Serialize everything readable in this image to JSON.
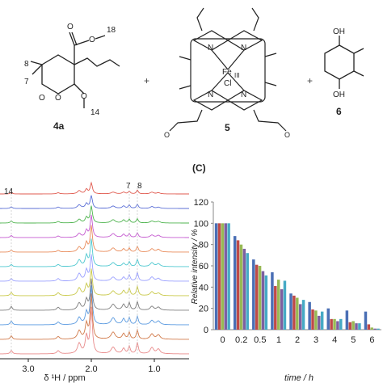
{
  "structures": {
    "compound_4a": {
      "name": "4a",
      "atom_labels": [
        "8",
        "7",
        "18",
        "14"
      ],
      "ring_oxygens": [
        "O",
        "O"
      ]
    },
    "compound_5": {
      "name": "5",
      "metal": "Fe",
      "oxidation_state": "III",
      "axial_ligand": "Cl",
      "pyrrole_nitrogens": [
        "N",
        "N",
        "N",
        "N"
      ]
    },
    "compound_6": {
      "name": "6",
      "hydroxyls": [
        "OH",
        "OH"
      ]
    },
    "plus_signs": [
      "+",
      "+"
    ]
  },
  "nmr_panel": {
    "peak_labels": [
      "14",
      "7",
      "8"
    ],
    "x_ticks": [
      "3.0",
      "2.0",
      "1.0"
    ],
    "x_axis_label": "δ ¹H / ppm",
    "spectrum_colors": [
      "#e05a4f",
      "#5b6fd6",
      "#4fb44f",
      "#c55bd0",
      "#e98b5a",
      "#4fc8d0",
      "#9aa0ff",
      "#c9c94a",
      "#7e7e7e",
      "#5a9ae0",
      "#d17a4a",
      "#e88a8a"
    ]
  },
  "panel_c_label": "(C)",
  "chart_data": {
    "type": "bar",
    "categories": [
      "0",
      "0.2",
      "0.5",
      "1",
      "2",
      "3",
      "4",
      "5",
      "6"
    ],
    "series": [
      {
        "color": "#4a6fb5",
        "values": [
          100,
          88,
          66,
          54,
          34,
          26,
          20,
          18,
          17
        ]
      },
      {
        "color": "#be4a48",
        "values": [
          100,
          84,
          61,
          41,
          32,
          19,
          10,
          7,
          5
        ]
      },
      {
        "color": "#98b954",
        "values": [
          100,
          80,
          60,
          47,
          30,
          18,
          10,
          8,
          2
        ]
      },
      {
        "color": "#7d60a0",
        "values": [
          100,
          76,
          55,
          38,
          24,
          13,
          8,
          6,
          1
        ]
      },
      {
        "color": "#46aac5",
        "values": [
          100,
          72,
          51,
          46,
          28,
          17,
          10,
          6,
          1
        ]
      }
    ],
    "ylabel": "Relative intensity / %",
    "xlabel": "time / h",
    "ylim": [
      0,
      120
    ],
    "yticks": [
      0,
      20,
      40,
      60,
      80,
      100,
      120
    ],
    "grid": false,
    "legend": "none"
  }
}
